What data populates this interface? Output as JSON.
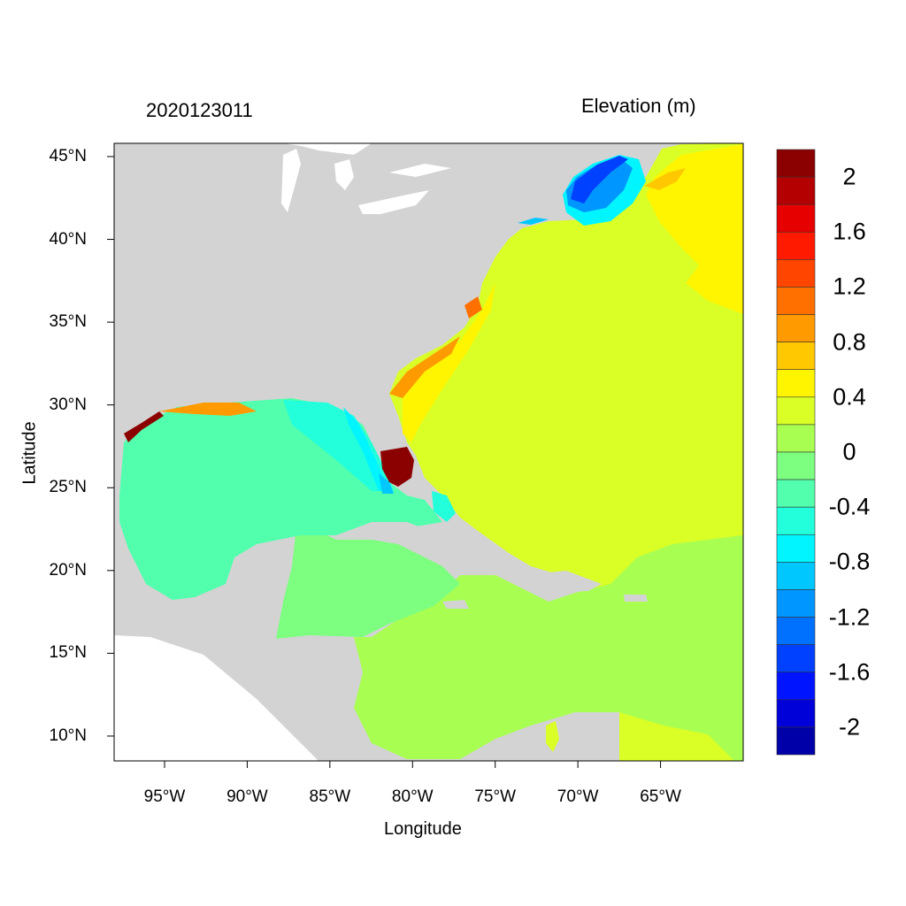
{
  "title_left": "2020123011",
  "colorbar_title": "Elevation (m)",
  "xlabel": "Longitude",
  "ylabel": "Latitude",
  "map": {
    "extent_lon": [
      -98.05,
      -60.0
    ],
    "extent_lat": [
      8.5,
      45.8
    ],
    "land_color": "#D3D3D3",
    "lon_ticks": [
      {
        "value": -95,
        "label": "95°W"
      },
      {
        "value": -90,
        "label": "90°W"
      },
      {
        "value": -85,
        "label": "85°W"
      },
      {
        "value": -80,
        "label": "80°W"
      },
      {
        "value": -75,
        "label": "75°W"
      },
      {
        "value": -70,
        "label": "70°W"
      },
      {
        "value": -65,
        "label": "65°W"
      }
    ],
    "lat_ticks": [
      {
        "value": 45,
        "label": "45°N"
      },
      {
        "value": 40,
        "label": "40°N"
      },
      {
        "value": 35,
        "label": "35°N"
      },
      {
        "value": 30,
        "label": "30°N"
      },
      {
        "value": 25,
        "label": "25°N"
      },
      {
        "value": 20,
        "label": "20°N"
      },
      {
        "value": 15,
        "label": "15°N"
      },
      {
        "value": 10,
        "label": "10°N"
      }
    ]
  },
  "colorbar": {
    "range": [
      -2.2,
      2.2
    ],
    "step": 0.2,
    "colors_top_to_bottom": [
      "#8B0000",
      "#B40000",
      "#E60000",
      "#FF1A00",
      "#FF4500",
      "#FF7000",
      "#FF9A00",
      "#FFC800",
      "#FFF500",
      "#D9FF26",
      "#A8FF52",
      "#7DFF80",
      "#52FFAD",
      "#24FFDB",
      "#00F5FF",
      "#00C8FF",
      "#0096FF",
      "#0070FF",
      "#0040FF",
      "#0014FF",
      "#0000D9",
      "#0000A8"
    ],
    "labels": [
      {
        "value": 2,
        "label": "2"
      },
      {
        "value": 1.6,
        "label": "1.6"
      },
      {
        "value": 1.2,
        "label": "1.2"
      },
      {
        "value": 0.8,
        "label": "0.8"
      },
      {
        "value": 0.4,
        "label": "0.4"
      },
      {
        "value": 0,
        "label": "0"
      },
      {
        "value": -0.4,
        "label": "-0.4"
      },
      {
        "value": -0.8,
        "label": "-0.8"
      },
      {
        "value": -1.2,
        "label": "-1.2"
      },
      {
        "value": -1.6,
        "label": "-1.6"
      },
      {
        "value": -2,
        "label": "-2"
      }
    ]
  }
}
